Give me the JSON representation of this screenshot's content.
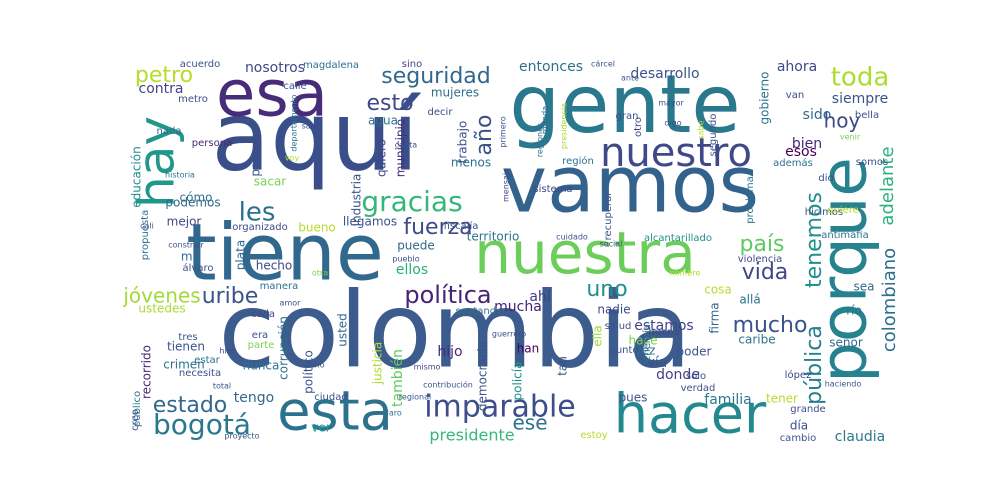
{
  "words": [
    {
      "text": "colombia",
      "color": "#3b5c8c"
    },
    {
      "text": "aquí",
      "color": "#3a4f8a"
    },
    {
      "text": "gente",
      "color": "#2a788e"
    },
    {
      "text": "vamos",
      "color": "#33628d"
    },
    {
      "text": "tiene",
      "color": "#31688e"
    },
    {
      "text": "nuestra",
      "color": "#6ccd5a"
    },
    {
      "text": "porque",
      "color": "#26828e"
    },
    {
      "text": "esa",
      "color": "#472c7a"
    },
    {
      "text": "hacer",
      "color": "#23898e"
    },
    {
      "text": "esta",
      "color": "#2c728e"
    },
    {
      "text": "hay",
      "color": "#1f978b"
    },
    {
      "text": "nuestro",
      "color": "#3f4889"
    },
    {
      "text": "imparable",
      "color": "#3d4e8a"
    },
    {
      "text": "gracias",
      "color": "#35b779"
    },
    {
      "text": "seguridad",
      "color": "#31688e"
    },
    {
      "text": "política",
      "color": "#482475"
    },
    {
      "text": "fuerza",
      "color": "#3e4a89"
    },
    {
      "text": "les",
      "color": "#2d708e"
    },
    {
      "text": "bogotá",
      "color": "#2a788e"
    },
    {
      "text": "uribe",
      "color": "#3b528b"
    },
    {
      "text": "vida",
      "color": "#404688"
    },
    {
      "text": "país",
      "color": "#5ec962"
    },
    {
      "text": "toda",
      "color": "#addc30"
    },
    {
      "text": "mucho",
      "color": "#3b528b"
    },
    {
      "text": "adelante",
      "color": "#2db27d"
    },
    {
      "text": "colombiano",
      "color": "#2e6e8e"
    },
    {
      "text": "estado",
      "color": "#31688e"
    },
    {
      "text": "esto",
      "color": "#3e4989"
    },
    {
      "text": "año",
      "color": "#3b528b"
    },
    {
      "text": "pública",
      "color": "#27808e"
    },
    {
      "text": "tenemos",
      "color": "#21908d"
    },
    {
      "text": "uno",
      "color": "#21918c"
    },
    {
      "text": "petro",
      "color": "#b5de2b"
    },
    {
      "text": "jóvenes",
      "color": "#a2da37"
    },
    {
      "text": "hoy",
      "color": "#3e4989"
    },
    {
      "text": "ese",
      "color": "#2c728e"
    },
    {
      "text": "presidente",
      "color": "#37b878"
    },
    {
      "text": "también",
      "color": "#5ec962"
    },
    {
      "text": "ver",
      "color": "#1fa187"
    },
    {
      "text": "tengo",
      "color": "#31688e"
    },
    {
      "text": "familia",
      "color": "#2a788e"
    },
    {
      "text": "donde",
      "color": "#433e85"
    },
    {
      "text": "estamos",
      "color": "#414487"
    },
    {
      "text": "claudia",
      "color": "#2a788e"
    },
    {
      "text": "hijo",
      "color": "#482878"
    },
    {
      "text": "vía",
      "color": "#3b528b"
    },
    {
      "text": "mucha",
      "color": "#482173"
    },
    {
      "text": "ahí",
      "color": "#433e85"
    },
    {
      "text": "ellos",
      "color": "#2ab07f"
    },
    {
      "text": "nosotros",
      "color": "#3e4989"
    },
    {
      "text": "entonces",
      "color": "#2c728e"
    },
    {
      "text": "desarrollo",
      "color": "#3b528b"
    },
    {
      "text": "ahora",
      "color": "#3e4989"
    },
    {
      "text": "contra",
      "color": "#404688"
    },
    {
      "text": "siempre",
      "color": "#3b528b"
    },
    {
      "text": "sido",
      "color": "#31688e"
    },
    {
      "text": "bien",
      "color": "#482475"
    },
    {
      "text": "esos",
      "color": "#440154"
    },
    {
      "text": "gobierno",
      "color": "#2c728e"
    },
    {
      "text": "trabajo",
      "color": "#3b528b"
    },
    {
      "text": "mujeres",
      "color": "#2e6e8e"
    },
    {
      "text": "agua",
      "color": "#2c728e"
    },
    {
      "text": "quiero",
      "color": "#414487"
    },
    {
      "text": "municipio",
      "color": "#472d7b"
    },
    {
      "text": "menos",
      "color": "#2c728e"
    },
    {
      "text": "industria",
      "color": "#3b528b"
    },
    {
      "text": "sacar",
      "color": "#7ad151"
    },
    {
      "text": "paz",
      "color": "#3b528b"
    },
    {
      "text": "cómo",
      "color": "#2c728e"
    },
    {
      "text": "mejor",
      "color": "#3e4989"
    },
    {
      "text": "podemos",
      "color": "#31688e"
    },
    {
      "text": "bueno",
      "color": "#b5de2b"
    },
    {
      "text": "llegamos",
      "color": "#3b528b"
    },
    {
      "text": "puede",
      "color": "#31688e"
    },
    {
      "text": "territorio",
      "color": "#2c728e"
    },
    {
      "text": "mil",
      "color": "#2c728e"
    },
    {
      "text": "plata",
      "color": "#31688e"
    },
    {
      "text": "hecho",
      "color": "#3e4989"
    },
    {
      "text": "ustedes",
      "color": "#a8db34"
    },
    {
      "text": "recorrido",
      "color": "#482677"
    },
    {
      "text": "crimen",
      "color": "#2c728e"
    },
    {
      "text": "tienen",
      "color": "#3b528b"
    },
    {
      "text": "nunca",
      "color": "#2c728e"
    },
    {
      "text": "político",
      "color": "#3b528b"
    },
    {
      "text": "corrupción",
      "color": "#2e6e8e"
    },
    {
      "text": "justicia",
      "color": "#addc30"
    },
    {
      "text": "usted",
      "color": "#31688e"
    },
    {
      "text": "democracia",
      "color": "#3b528b"
    },
    {
      "text": "policía",
      "color": "#21918c"
    },
    {
      "text": "han",
      "color": "#440154"
    },
    {
      "text": "tan",
      "color": "#3b528b"
    },
    {
      "text": "nadie",
      "color": "#3e4989"
    },
    {
      "text": "cosa",
      "color": "#b8de29"
    },
    {
      "text": "allá",
      "color": "#2c728e"
    },
    {
      "text": "sea",
      "color": "#31688e"
    },
    {
      "text": "río",
      "color": "#2c728e"
    },
    {
      "text": "señor",
      "color": "#31688e"
    },
    {
      "text": "caribe",
      "color": "#2c728e"
    },
    {
      "text": "poder",
      "color": "#3b528b"
    },
    {
      "text": "hace",
      "color": "#7ad151"
    },
    {
      "text": "vez",
      "color": "#2c728e"
    },
    {
      "text": "ella",
      "color": "#a2da37"
    },
    {
      "text": "firma",
      "color": "#31688e"
    },
    {
      "text": "pues",
      "color": "#3b528b"
    },
    {
      "text": "tener",
      "color": "#b5de2b"
    },
    {
      "text": "día",
      "color": "#3b528b"
    },
    {
      "text": "educación",
      "color": "#21918c"
    },
    {
      "text": "nada",
      "color": "#31688e"
    },
    {
      "text": "persona",
      "color": "#482677"
    },
    {
      "text": "metro",
      "color": "#3b528b"
    },
    {
      "text": "calle",
      "color": "#3b528b"
    },
    {
      "text": "decir",
      "color": "#3e4989"
    },
    {
      "text": "magdalena",
      "color": "#2c728e"
    },
    {
      "text": "sino",
      "color": "#3e4989"
    },
    {
      "text": "acuerdo",
      "color": "#3b528b"
    },
    {
      "text": "región",
      "color": "#2c728e"
    },
    {
      "text": "recuperar",
      "color": "#3b528b"
    },
    {
      "text": "sistema",
      "color": "#414487"
    },
    {
      "text": "alcantarillado",
      "color": "#21918c"
    },
    {
      "text": "violencia",
      "color": "#3e4989"
    },
    {
      "text": "problema",
      "color": "#2c728e"
    },
    {
      "text": "hicimos",
      "color": "#3b528b"
    },
    {
      "text": "antimafia",
      "color": "#2c728e"
    },
    {
      "text": "quiere",
      "color": "#b5de2b"
    },
    {
      "text": "segundo",
      "color": "#3b528b"
    },
    {
      "text": "gran",
      "color": "#3b528b"
    },
    {
      "text": "otro",
      "color": "#3e4989"
    },
    {
      "text": "van",
      "color": "#3e4989"
    },
    {
      "text": "bella",
      "color": "#3b528b"
    },
    {
      "text": "somos",
      "color": "#3b528b"
    },
    {
      "text": "dio",
      "color": "#3b528b"
    },
    {
      "text": "además",
      "color": "#2c728e"
    },
    {
      "text": "fiscalía",
      "color": "#3b528b"
    },
    {
      "text": "organizado",
      "color": "#3e4989"
    },
    {
      "text": "santander",
      "color": "#2c728e"
    },
    {
      "text": "salud",
      "color": "#3b528b"
    },
    {
      "text": "energía",
      "color": "#2c728e"
    },
    {
      "text": "buena",
      "color": "#3e4989"
    },
    {
      "text": "punto",
      "color": "#3b528b"
    },
    {
      "text": "verdad",
      "color": "#3b528b"
    },
    {
      "text": "solo",
      "color": "#3b528b"
    },
    {
      "text": "estoy",
      "color": "#b5de2b"
    },
    {
      "text": "cambio",
      "color": "#3b528b"
    },
    {
      "text": "grande",
      "color": "#3b528b"
    },
    {
      "text": "lópez",
      "color": "#3e4989"
    },
    {
      "text": "necesita",
      "color": "#3b528b"
    },
    {
      "text": "parte",
      "color": "#7ad151"
    },
    {
      "text": "era",
      "color": "#3b528b"
    },
    {
      "text": "estar",
      "color": "#2c728e"
    },
    {
      "text": "tres",
      "color": "#3b528b"
    },
    {
      "text": "cada",
      "color": "#3e4989"
    },
    {
      "text": "manera",
      "color": "#2c728e"
    },
    {
      "text": "álvaro",
      "color": "#3b528b"
    },
    {
      "text": "propuesta",
      "color": "#2c728e"
    },
    {
      "text": "público",
      "color": "#2c728e"
    },
    {
      "text": "creo",
      "color": "#3b528b"
    },
    {
      "text": "ciudad",
      "color": "#3b528b"
    },
    {
      "text": "mismo",
      "color": "#3e4989"
    },
    {
      "text": "regional",
      "color": "#3b528b"
    },
    {
      "text": "claro",
      "color": "#2c728e"
    },
    {
      "text": "total",
      "color": "#3b528b"
    },
    {
      "text": "proyecto",
      "color": "#3b528b"
    },
    {
      "text": "primero",
      "color": "#3b528b"
    },
    {
      "text": "regiones",
      "color": "#2c728e"
    },
    {
      "text": "presidencia",
      "color": "#addc30"
    },
    {
      "text": "mirada",
      "color": "#2c728e"
    },
    {
      "text": "cárcel",
      "color": "#3b528b"
    },
    {
      "text": "salir",
      "color": "#3e4989"
    },
    {
      "text": "departamento",
      "color": "#2c728e"
    },
    {
      "text": "historia",
      "color": "#2c728e"
    },
    {
      "text": "cali",
      "color": "#3b528b"
    },
    {
      "text": "construir",
      "color": "#3b528b"
    },
    {
      "text": "amor",
      "color": "#3b528b"
    },
    {
      "text": "hiro",
      "color": "#3e4989"
    },
    {
      "text": "niño",
      "color": "#3b528b"
    },
    {
      "text": "pueblo",
      "color": "#3b528b"
    },
    {
      "text": "mensaje",
      "color": "#3e4989"
    },
    {
      "text": "cuidado",
      "color": "#3b528b"
    },
    {
      "text": "social",
      "color": "#3b528b"
    },
    {
      "text": "haciendo",
      "color": "#3b528b"
    },
    {
      "text": "venir",
      "color": "#7ad151"
    },
    {
      "text": "mayor",
      "color": "#3b528b"
    },
    {
      "text": "digo",
      "color": "#3b528b"
    },
    {
      "text": "ante",
      "color": "#3b528b"
    },
    {
      "text": "canta",
      "color": "#3b528b"
    },
    {
      "text": "voy",
      "color": "#b5de2b"
    },
    {
      "text": "guerrero",
      "color": "#3b528b"
    },
    {
      "text": "contribución",
      "color": "#3b528b"
    },
    {
      "text": "nombre",
      "color": "#b5de2b"
    },
    {
      "text": "sabe",
      "color": "#b5de2b"
    },
    {
      "text": "otra",
      "color": "#7ad151"
    }
  ]
}
